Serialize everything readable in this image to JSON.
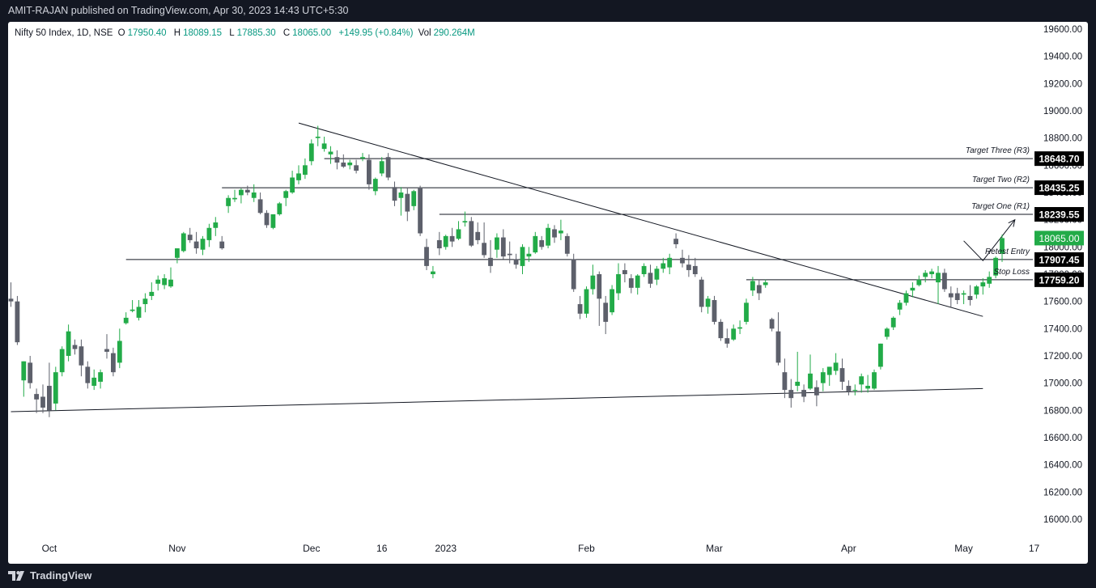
{
  "header": {
    "publisher_line": "AMIT-RAJAN published on TradingView.com, Apr 30, 2023 14:43 UTC+5:30"
  },
  "legend": {
    "symbol": "Nifty 50 Index, 1D, NSE",
    "open_label": "O",
    "open": "17950.40",
    "high_label": "H",
    "high": "18089.15",
    "low_label": "L",
    "low": "17885.30",
    "close_label": "C",
    "close": "18065.00",
    "change": "+149.95 (+0.84%)",
    "volume_label": "Vol",
    "volume": "290.264M"
  },
  "footer": {
    "brand": "TradingView"
  },
  "colors": {
    "up": "#22ab48",
    "down": "#5d606b",
    "line": "#131722",
    "grid_text": "#131722"
  },
  "chart_data": {
    "type": "candlestick",
    "title": "Nifty 50 Index, 1D, NSE",
    "ylim": [
      15800,
      19700
    ],
    "y_ticks": [
      16000,
      16200,
      16400,
      16600,
      16800,
      17000,
      17200,
      17400,
      17600,
      17800,
      18000,
      18200,
      18400,
      18600,
      18800,
      19000,
      19200,
      19400,
      19600
    ],
    "y_tick_labels": [
      "16000.00",
      "16200.00",
      "16400.00",
      "16600.00",
      "16800.00",
      "17000.00",
      "17200.00",
      "17400.00",
      "17600.00",
      "17800.00",
      "18000.00",
      "18200.00",
      "18400.00",
      "18600.00",
      "18800.00",
      "19000.00",
      "19200.00",
      "19400.00",
      "19600.00"
    ],
    "x_labels": [
      {
        "label": "Oct",
        "index": 6
      },
      {
        "label": "Nov",
        "index": 26
      },
      {
        "label": "Dec",
        "index": 47
      },
      {
        "label": "16",
        "index": 58
      },
      {
        "label": "2023",
        "index": 68
      },
      {
        "label": "Feb",
        "index": 90
      },
      {
        "label": "Mar",
        "index": 110
      },
      {
        "label": "Apr",
        "index": 131
      },
      {
        "label": "May",
        "index": 149
      },
      {
        "label": "17",
        "index": 160
      }
    ],
    "candles": [
      [
        17620,
        17740,
        17560,
        17600
      ],
      [
        17600,
        17640,
        17280,
        17300
      ],
      [
        17020,
        17160,
        16900,
        17160
      ],
      [
        17150,
        17200,
        16960,
        17000
      ],
      [
        16920,
        16960,
        16780,
        16880
      ],
      [
        16900,
        16990,
        16780,
        16820
      ],
      [
        16980,
        17150,
        16750,
        16800
      ],
      [
        16850,
        17120,
        16800,
        17080
      ],
      [
        17080,
        17270,
        17050,
        17250
      ],
      [
        17200,
        17430,
        17160,
        17380
      ],
      [
        17280,
        17320,
        17210,
        17250
      ],
      [
        17270,
        17320,
        17050,
        17130
      ],
      [
        17120,
        17160,
        16960,
        17000
      ],
      [
        16980,
        17100,
        16950,
        17040
      ],
      [
        17010,
        17100,
        16960,
        17080
      ],
      [
        17250,
        17360,
        17180,
        17230
      ],
      [
        17220,
        17260,
        17050,
        17080
      ],
      [
        17150,
        17400,
        17110,
        17310
      ],
      [
        17440,
        17520,
        17430,
        17480
      ],
      [
        17530,
        17610,
        17520,
        17540
      ],
      [
        17480,
        17610,
        17460,
        17560
      ],
      [
        17580,
        17660,
        17520,
        17620
      ],
      [
        17640,
        17740,
        17610,
        17670
      ],
      [
        17730,
        17790,
        17680,
        17760
      ],
      [
        17720,
        17800,
        17690,
        17770
      ],
      [
        17710,
        17850,
        17700,
        17760
      ],
      [
        17920,
        17980,
        17880,
        17990
      ],
      [
        17970,
        18110,
        17960,
        18100
      ],
      [
        18090,
        18140,
        18030,
        18050
      ],
      [
        18040,
        18110,
        17950,
        17990
      ],
      [
        17980,
        18080,
        17940,
        18060
      ],
      [
        18050,
        18170,
        18000,
        18140
      ],
      [
        18140,
        18220,
        18080,
        18180
      ],
      [
        18040,
        18080,
        17980,
        17990
      ],
      [
        18300,
        18380,
        18250,
        18360
      ],
      [
        18350,
        18420,
        18330,
        18360
      ],
      [
        18380,
        18430,
        18320,
        18420
      ],
      [
        18420,
        18450,
        18380,
        18400
      ],
      [
        18360,
        18460,
        18330,
        18400
      ],
      [
        18350,
        18400,
        18240,
        18250
      ],
      [
        18250,
        18270,
        18140,
        18160
      ],
      [
        18140,
        18230,
        18130,
        18240
      ],
      [
        18240,
        18330,
        18230,
        18320
      ],
      [
        18360,
        18420,
        18300,
        18410
      ],
      [
        18400,
        18560,
        18390,
        18510
      ],
      [
        18490,
        18600,
        18460,
        18540
      ],
      [
        18530,
        18650,
        18500,
        18600
      ],
      [
        18630,
        18790,
        18600,
        18760
      ],
      [
        18800,
        18890,
        18740,
        18810
      ],
      [
        18720,
        18810,
        18700,
        18760
      ],
      [
        18680,
        18740,
        18610,
        18700
      ],
      [
        18660,
        18710,
        18570,
        18620
      ],
      [
        18620,
        18680,
        18580,
        18590
      ],
      [
        18600,
        18640,
        18570,
        18620
      ],
      [
        18600,
        18640,
        18540,
        18560
      ],
      [
        18650,
        18690,
        18630,
        18660
      ],
      [
        18640,
        18680,
        18420,
        18460
      ],
      [
        18410,
        18510,
        18380,
        18500
      ],
      [
        18540,
        18660,
        18520,
        18630
      ],
      [
        18660,
        18690,
        18490,
        18510
      ],
      [
        18440,
        18480,
        18300,
        18340
      ],
      [
        18360,
        18440,
        18230,
        18400
      ],
      [
        18390,
        18430,
        18190,
        18260
      ],
      [
        18300,
        18420,
        18270,
        18410
      ],
      [
        18430,
        18450,
        18080,
        18100
      ],
      [
        18000,
        18060,
        17830,
        17860
      ],
      [
        17800,
        17860,
        17770,
        17820
      ],
      [
        18050,
        18110,
        17940,
        17990
      ],
      [
        18000,
        18090,
        17980,
        18080
      ],
      [
        18080,
        18140,
        18000,
        18040
      ],
      [
        18060,
        18190,
        18050,
        18130
      ],
      [
        18180,
        18260,
        18150,
        18190
      ],
      [
        18190,
        18220,
        18000,
        18010
      ],
      [
        18110,
        18180,
        18020,
        18050
      ],
      [
        18030,
        18180,
        17920,
        17940
      ],
      [
        17920,
        18050,
        17810,
        17860
      ],
      [
        17980,
        18100,
        17920,
        18070
      ],
      [
        18070,
        18130,
        17910,
        17930
      ],
      [
        17950,
        18040,
        17880,
        17940
      ],
      [
        17910,
        17950,
        17840,
        17870
      ],
      [
        17860,
        18020,
        17800,
        18000
      ],
      [
        17930,
        18000,
        17890,
        17950
      ],
      [
        17960,
        18110,
        17950,
        18080
      ],
      [
        18050,
        18080,
        17980,
        18000
      ],
      [
        18010,
        18170,
        17990,
        18140
      ],
      [
        18130,
        18160,
        18030,
        18070
      ],
      [
        18100,
        18200,
        18050,
        18120
      ],
      [
        18080,
        18100,
        17930,
        17950
      ],
      [
        17910,
        17950,
        17670,
        17690
      ],
      [
        17580,
        17640,
        17470,
        17510
      ],
      [
        17510,
        17710,
        17480,
        17690
      ],
      [
        17690,
        17870,
        17650,
        17790
      ],
      [
        17800,
        17820,
        17420,
        17620
      ],
      [
        17590,
        17640,
        17360,
        17450
      ],
      [
        17520,
        17720,
        17500,
        17690
      ],
      [
        17660,
        17880,
        17610,
        17800
      ],
      [
        17830,
        17880,
        17740,
        17800
      ],
      [
        17770,
        17800,
        17660,
        17700
      ],
      [
        17700,
        17800,
        17650,
        17790
      ],
      [
        17800,
        17880,
        17780,
        17860
      ],
      [
        17810,
        17870,
        17700,
        17730
      ],
      [
        17760,
        17860,
        17720,
        17840
      ],
      [
        17840,
        17920,
        17810,
        17880
      ],
      [
        17850,
        17950,
        17800,
        17920
      ],
      [
        18060,
        18100,
        17990,
        18020
      ],
      [
        17920,
        17980,
        17850,
        17880
      ],
      [
        17870,
        17940,
        17780,
        17830
      ],
      [
        17860,
        17920,
        17780,
        17800
      ],
      [
        17760,
        17780,
        17520,
        17560
      ],
      [
        17560,
        17640,
        17510,
        17620
      ],
      [
        17610,
        17640,
        17430,
        17450
      ],
      [
        17450,
        17470,
        17310,
        17330
      ],
      [
        17330,
        17400,
        17260,
        17290
      ],
      [
        17320,
        17430,
        17310,
        17400
      ],
      [
        17400,
        17460,
        17360,
        17410
      ],
      [
        17450,
        17620,
        17430,
        17590
      ],
      [
        17680,
        17780,
        17640,
        17750
      ],
      [
        17720,
        17760,
        17610,
        17660
      ],
      [
        17720,
        17760,
        17700,
        17740
      ],
      [
        17470,
        17480,
        17380,
        17400
      ],
      [
        17380,
        17520,
        17130,
        17150
      ],
      [
        17080,
        17180,
        16890,
        16950
      ],
      [
        16950,
        17030,
        16820,
        16890
      ],
      [
        16980,
        17230,
        16940,
        17010
      ],
      [
        16950,
        16990,
        16860,
        16900
      ],
      [
        16960,
        17210,
        16950,
        17070
      ],
      [
        16970,
        17020,
        16830,
        16910
      ],
      [
        17000,
        17110,
        16940,
        17080
      ],
      [
        17060,
        17120,
        16980,
        17120
      ],
      [
        17090,
        17220,
        17060,
        17150
      ],
      [
        17110,
        17180,
        16950,
        17010
      ],
      [
        16980,
        17020,
        16910,
        16940
      ],
      [
        16950,
        16990,
        16910,
        16950
      ],
      [
        16990,
        17070,
        16930,
        17050
      ],
      [
        16960,
        17060,
        16930,
        16980
      ],
      [
        16960,
        17100,
        16950,
        17080
      ],
      [
        17120,
        17290,
        17100,
        17290
      ],
      [
        17340,
        17410,
        17320,
        17400
      ],
      [
        17410,
        17490,
        17390,
        17480
      ],
      [
        17540,
        17610,
        17500,
        17590
      ],
      [
        17590,
        17680,
        17570,
        17660
      ],
      [
        17680,
        17740,
        17630,
        17700
      ],
      [
        17720,
        17790,
        17710,
        17760
      ],
      [
        17780,
        17830,
        17740,
        17810
      ],
      [
        17800,
        17840,
        17770,
        17820
      ],
      [
        17740,
        17860,
        17580,
        17810
      ],
      [
        17810,
        17840,
        17670,
        17690
      ],
      [
        17660,
        17710,
        17560,
        17630
      ],
      [
        17660,
        17700,
        17580,
        17610
      ],
      [
        17650,
        17680,
        17580,
        17660
      ],
      [
        17640,
        17720,
        17570,
        17610
      ],
      [
        17650,
        17720,
        17620,
        17710
      ],
      [
        17710,
        17770,
        17650,
        17740
      ],
      [
        17730,
        17820,
        17700,
        17780
      ],
      [
        17790,
        17930,
        17770,
        17920
      ],
      [
        17950,
        18090,
        17890,
        18065
      ]
    ],
    "trendlines": [
      {
        "name": "descending-trendline",
        "from": {
          "index": 45,
          "value": 18910
        },
        "to": {
          "index": 152,
          "value": 17490
        }
      },
      {
        "name": "ascending-support-line",
        "from": {
          "index": 0,
          "value": 16790
        },
        "to": {
          "index": 152,
          "value": 16960
        }
      }
    ],
    "levels": [
      {
        "name": "target-three",
        "value": 18648.7,
        "label": "Target Three (R3)",
        "price_label": "18648.70",
        "from_index": 49
      },
      {
        "name": "target-two",
        "value": 18435.25,
        "label": "Target Two (R2)",
        "price_label": "18435.25",
        "from_index": 33
      },
      {
        "name": "target-one",
        "value": 18239.55,
        "label": "Target One (R1)",
        "price_label": "18239.55",
        "from_index": 67
      },
      {
        "name": "retest-entry",
        "value": 17907.45,
        "label": "Retest Entry",
        "price_label": "17907.45",
        "from_index": 18
      },
      {
        "name": "stop-loss",
        "value": 17759.2,
        "label": "Stop Loss",
        "price_label": "17759.20",
        "from_index": 115
      }
    ],
    "last_price": {
      "value": 18065.0,
      "label": "18065.00"
    },
    "projection_path": [
      {
        "index": 149,
        "value": 18045
      },
      {
        "index": 152,
        "value": 17900
      },
      {
        "index": 157,
        "value": 18200
      }
    ]
  }
}
